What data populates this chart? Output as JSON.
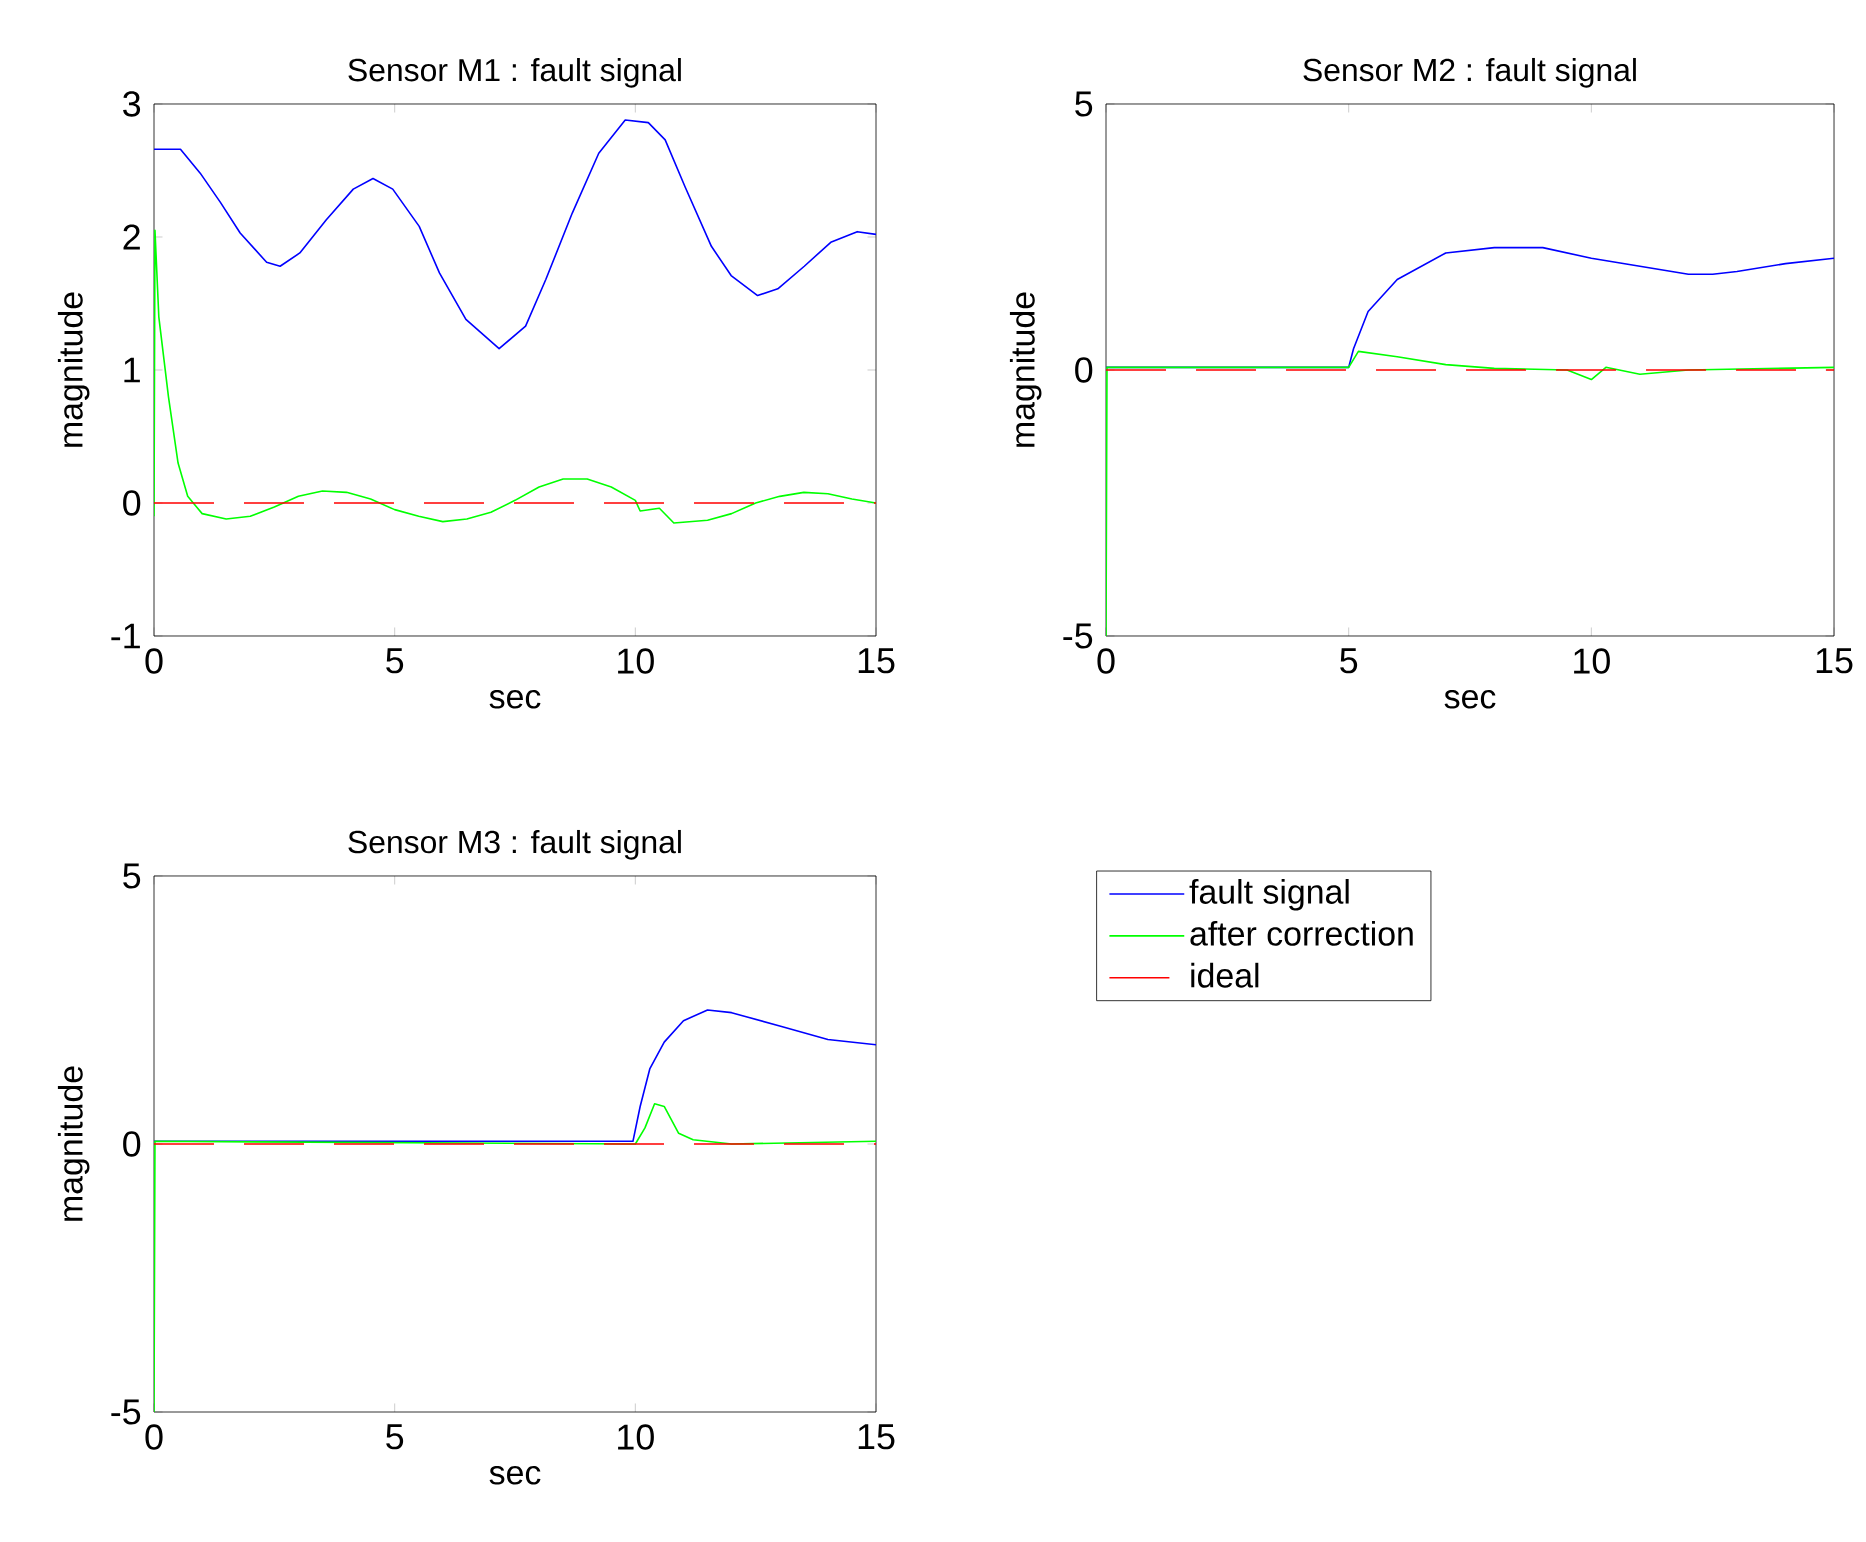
{
  "chart_data": [
    {
      "type": "line",
      "title": "Sensor M1 : fault signal",
      "xlabel": "sec",
      "ylabel": "magnitude",
      "xlim": [
        0,
        15
      ],
      "ylim": [
        -1,
        3
      ],
      "xticks": [
        0,
        5,
        10,
        15
      ],
      "yticks": [
        -1,
        0,
        1,
        2,
        3
      ],
      "series": [
        {
          "color": "#0000ff",
          "line_style": "solid",
          "x": [
            0,
            0.55,
            0.96,
            1.38,
            1.79,
            2.34,
            2.62,
            3.03,
            3.58,
            4.14,
            4.55,
            4.96,
            5.51,
            5.93,
            6.48,
            7.17,
            7.72,
            8.14,
            8.69,
            9.24,
            9.79,
            10.27,
            10.62,
            11.03,
            11.58,
            11.99,
            12.54,
            12.96,
            13.51,
            14.06,
            14.61,
            15
          ],
          "values": [
            2.66,
            2.66,
            2.48,
            2.26,
            2.03,
            1.81,
            1.78,
            1.88,
            2.13,
            2.36,
            2.44,
            2.36,
            2.08,
            1.73,
            1.38,
            1.16,
            1.33,
            1.68,
            2.18,
            2.63,
            2.88,
            2.86,
            2.73,
            2.38,
            1.93,
            1.71,
            1.56,
            1.61,
            1.78,
            1.96,
            2.04,
            2.02
          ]
        },
        {
          "color": "#00ff00",
          "line_style": "solid",
          "x": [
            0,
            0.02,
            0.1,
            0.3,
            0.5,
            0.7,
            1.0,
            1.5,
            2,
            2.5,
            3,
            3.5,
            4,
            4.5,
            5,
            5.5,
            6,
            6.5,
            7,
            7.5,
            8,
            8.5,
            9,
            9.5,
            10,
            10.1,
            10.5,
            10.8,
            11.5,
            12,
            12.5,
            13,
            13.5,
            14,
            14.5,
            15
          ],
          "values": [
            -0.1,
            2.05,
            1.4,
            0.8,
            0.3,
            0.05,
            -0.08,
            -0.12,
            -0.1,
            -0.03,
            0.05,
            0.09,
            0.08,
            0.03,
            -0.05,
            -0.1,
            -0.14,
            -0.12,
            -0.07,
            0.02,
            0.12,
            0.18,
            0.18,
            0.12,
            0.02,
            -0.06,
            -0.04,
            -0.15,
            -0.13,
            -0.08,
            0.0,
            0.05,
            0.08,
            0.07,
            0.03,
            0.0
          ]
        },
        {
          "color": "#ff0000",
          "line_style": "dashed",
          "x": [
            0,
            15
          ],
          "values": [
            0,
            0
          ]
        }
      ]
    },
    {
      "type": "line",
      "title": "Sensor M2 : fault signal",
      "xlabel": "sec",
      "ylabel": "magnitude",
      "xlim": [
        0,
        15
      ],
      "ylim": [
        -5,
        5
      ],
      "xticks": [
        0,
        5,
        10,
        15
      ],
      "yticks": [
        -5,
        0,
        5
      ],
      "series": [
        {
          "color": "#0000ff",
          "line_style": "solid",
          "x": [
            0,
            5,
            5.1,
            5.4,
            6,
            7,
            8,
            9,
            10,
            11,
            12,
            12.5,
            13,
            14,
            15
          ],
          "values": [
            0.05,
            0.05,
            0.4,
            1.1,
            1.7,
            2.2,
            2.3,
            2.3,
            2.1,
            1.95,
            1.8,
            1.8,
            1.85,
            2.0,
            2.1
          ]
        },
        {
          "color": "#00ff00",
          "line_style": "solid",
          "x": [
            0,
            0.02,
            5,
            5.2,
            6,
            7,
            8,
            9.5,
            10,
            10.3,
            11,
            12,
            15
          ],
          "values": [
            -5,
            0.05,
            0.05,
            0.35,
            0.25,
            0.1,
            0.03,
            0.0,
            -0.18,
            0.05,
            -0.08,
            0.0,
            0.05
          ]
        },
        {
          "color": "#ff0000",
          "line_style": "dashed",
          "x": [
            0,
            15
          ],
          "values": [
            0,
            0
          ]
        }
      ]
    },
    {
      "type": "line",
      "title": "Sensor M3 : fault signal",
      "xlabel": "sec",
      "ylabel": "magnitude",
      "xlim": [
        0,
        15
      ],
      "ylim": [
        -5,
        5
      ],
      "xticks": [
        0,
        5,
        10,
        15
      ],
      "yticks": [
        -5,
        0,
        5
      ],
      "legend": "right",
      "series": [
        {
          "name": "fault signal",
          "color": "#0000ff",
          "line_style": "solid",
          "x": [
            0,
            9.95,
            10.1,
            10.3,
            10.6,
            11,
            11.5,
            12,
            13,
            14,
            15
          ],
          "values": [
            0.05,
            0.05,
            0.7,
            1.4,
            1.9,
            2.3,
            2.5,
            2.45,
            2.2,
            1.95,
            1.85
          ]
        },
        {
          "name": "after correction",
          "color": "#00ff00",
          "line_style": "solid",
          "x": [
            0,
            0.02,
            10,
            10.2,
            10.4,
            10.6,
            10.9,
            11.2,
            12,
            15
          ],
          "values": [
            -5,
            0.05,
            0.0,
            0.3,
            0.75,
            0.7,
            0.2,
            0.08,
            0.0,
            0.05
          ]
        },
        {
          "name": "ideal",
          "color": "#ff0000",
          "line_style": "dashed",
          "x": [
            0,
            15
          ],
          "values": [
            0,
            0
          ]
        }
      ]
    }
  ]
}
